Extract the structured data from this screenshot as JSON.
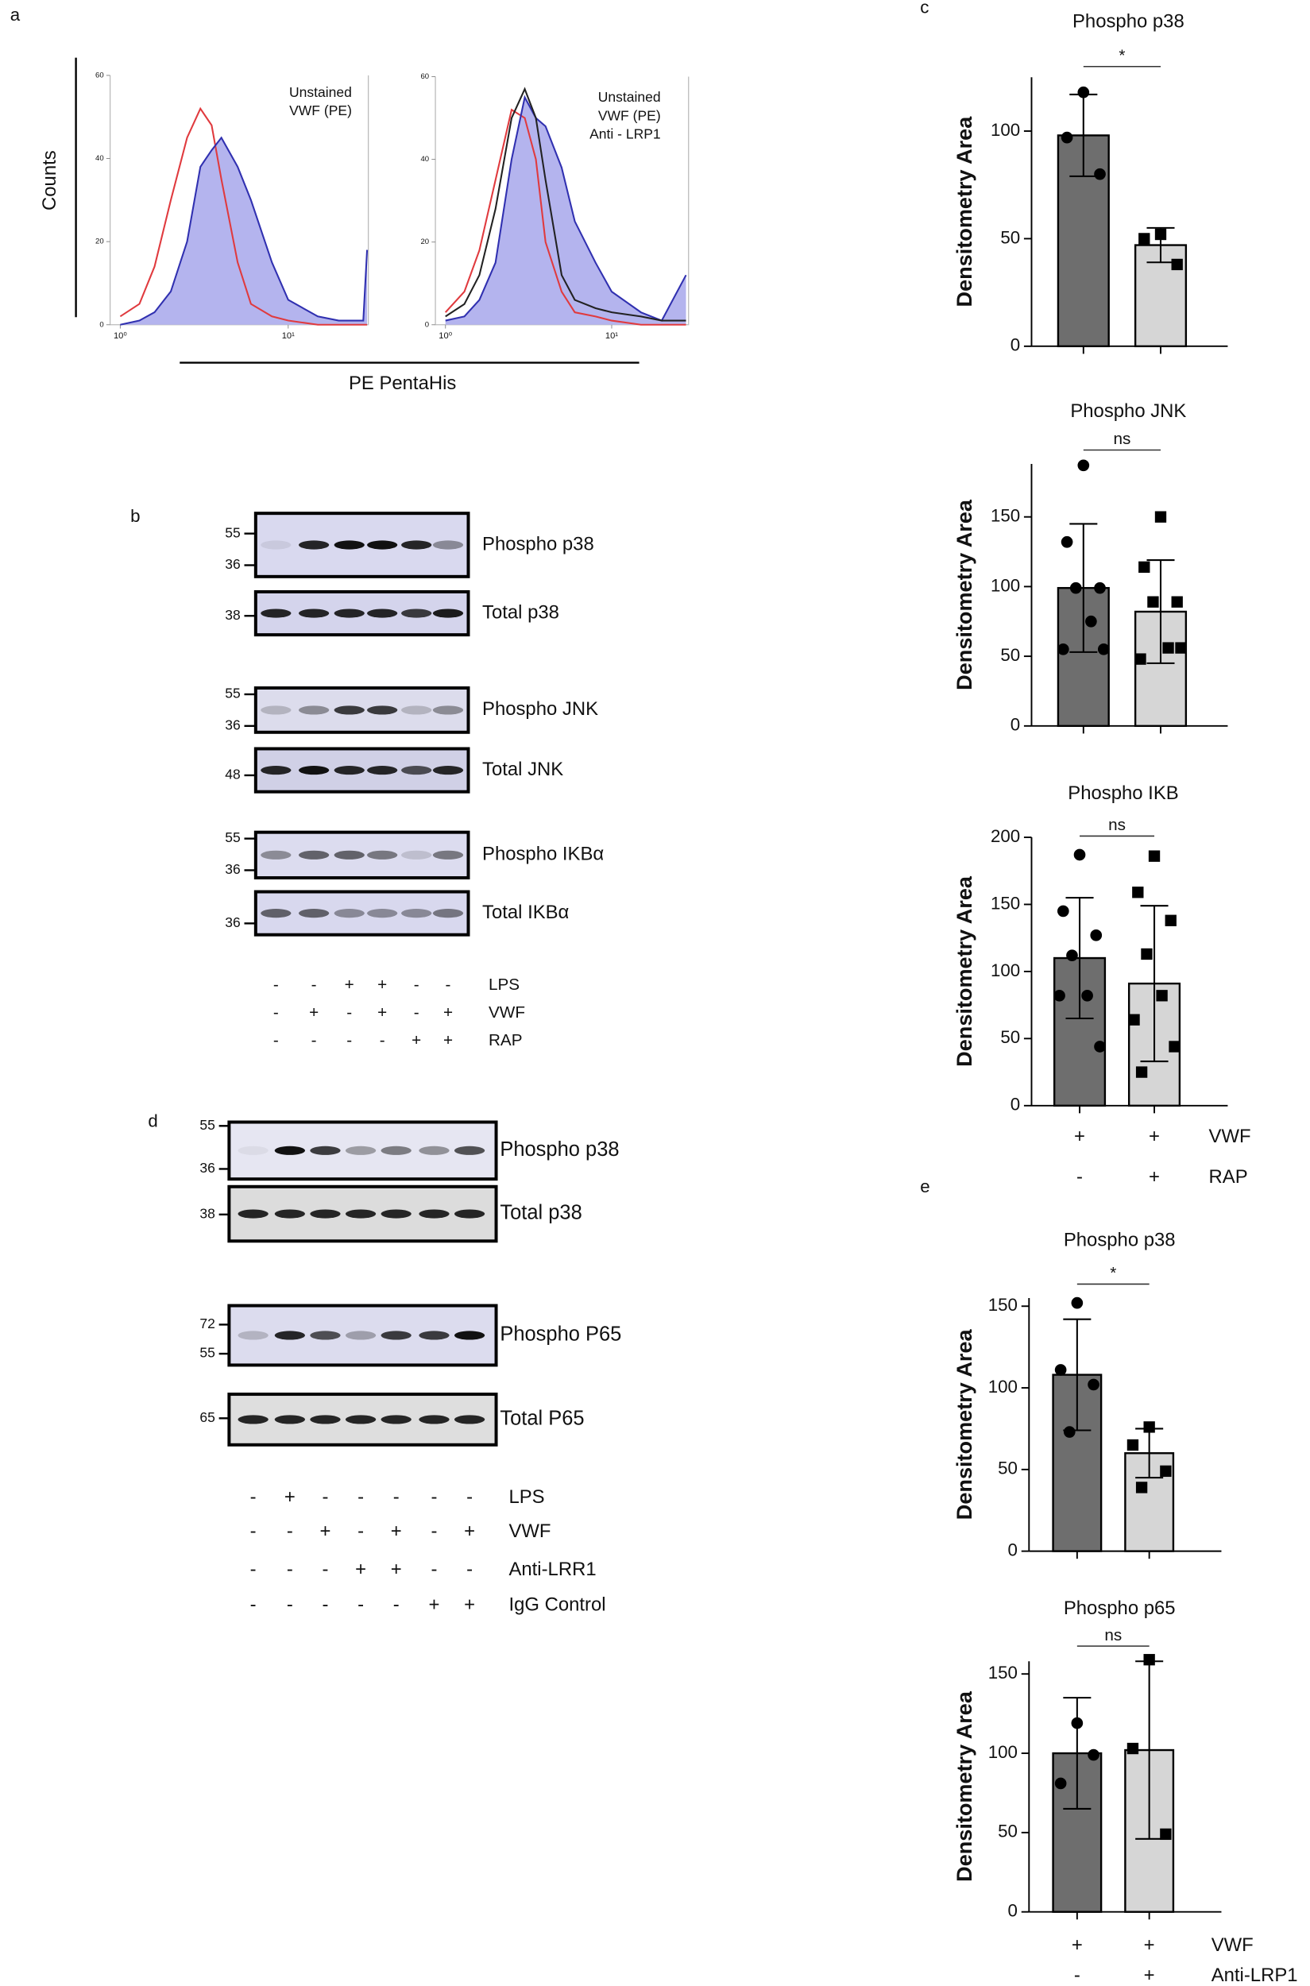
{
  "panel_labels": [
    "a",
    "b",
    "c",
    "d",
    "e"
  ],
  "histogram_axes": {
    "y_label": "Counts",
    "x_label": "PE PentaHis"
  },
  "chart_data": [
    {
      "type": "line",
      "xscale": "log",
      "xlim": [
        0.87,
        30
      ],
      "ylim": [
        0,
        60
      ],
      "yticks": [
        0,
        20,
        40,
        60
      ],
      "xticks": [
        {
          "value": 1,
          "label": "10⁰"
        },
        {
          "value": 10,
          "label": "10¹"
        }
      ],
      "x": [
        1,
        1.3,
        1.6,
        2,
        2.5,
        3,
        3.5,
        4,
        5,
        6,
        8,
        10,
        15,
        20,
        28,
        29.5
      ],
      "series": [
        {
          "name": "Unstained",
          "color": "#e03a3e",
          "values": [
            2,
            5,
            14,
            30,
            45,
            52,
            48,
            35,
            15,
            5,
            2,
            1,
            0,
            0,
            0,
            0
          ]
        },
        {
          "name": "VWF (PE)",
          "color": "#3030b0",
          "fill": "#b4b4ee",
          "values": [
            0,
            1,
            3,
            8,
            20,
            38,
            42,
            45,
            38,
            30,
            15,
            6,
            2,
            1,
            1,
            18
          ]
        }
      ]
    },
    {
      "type": "line",
      "xscale": "log",
      "xlim": [
        0.87,
        29
      ],
      "ylim": [
        0,
        60
      ],
      "yticks": [
        0,
        20,
        40,
        60
      ],
      "xticks": [
        {
          "value": 1,
          "label": "10⁰"
        },
        {
          "value": 10,
          "label": "10¹"
        }
      ],
      "x": [
        1,
        1.3,
        1.6,
        2,
        2.5,
        3,
        3.5,
        4,
        5,
        6,
        8,
        10,
        15,
        20,
        28
      ],
      "series": [
        {
          "name": "Unstained",
          "color": "#e03a3e",
          "values": [
            3,
            8,
            18,
            35,
            52,
            50,
            40,
            20,
            8,
            3,
            2,
            1,
            0,
            0,
            0
          ]
        },
        {
          "name": "VWF (PE)",
          "color": "#3030b0",
          "fill": "#b4b4ee",
          "values": [
            1,
            2,
            6,
            15,
            40,
            55,
            50,
            48,
            38,
            25,
            15,
            8,
            3,
            1,
            12
          ]
        },
        {
          "name": "Anti - LRP1",
          "color": "#222222",
          "values": [
            2,
            5,
            12,
            28,
            50,
            57,
            50,
            35,
            12,
            6,
            4,
            3,
            2,
            1,
            1
          ]
        }
      ]
    },
    {
      "type": "bar",
      "title": "Phospho p38",
      "y_label": "Densitometry Area",
      "ylim": [
        0,
        125
      ],
      "yticks": [
        0,
        50,
        100
      ],
      "values": [
        98,
        47
      ],
      "errors": [
        19,
        8
      ],
      "colors": [
        "#6e6e6e",
        "#d6d6d6"
      ],
      "point_shapes": [
        "circle",
        "square"
      ],
      "points": [
        [
          118,
          97,
          80
        ],
        [
          52,
          50,
          38
        ]
      ],
      "significance": "*"
    },
    {
      "type": "bar",
      "title": "Phospho JNK",
      "y_label": "Densitometry Area",
      "ylim": [
        0,
        188
      ],
      "yticks": [
        0,
        50,
        100,
        150
      ],
      "values": [
        99,
        82
      ],
      "errors": [
        46,
        37
      ],
      "colors": [
        "#6e6e6e",
        "#d6d6d6"
      ],
      "point_shapes": [
        "circle",
        "square"
      ],
      "points": [
        [
          187,
          132,
          99,
          99,
          75,
          55,
          55
        ],
        [
          150,
          114,
          89,
          89,
          56,
          48,
          56
        ]
      ],
      "significance": "ns"
    },
    {
      "type": "bar",
      "title": "Phospho IKB",
      "y_label": "Densitometry Area",
      "ylim": [
        0,
        200
      ],
      "yticks": [
        0,
        50,
        100,
        150,
        200
      ],
      "values": [
        110,
        91
      ],
      "errors": [
        45,
        58
      ],
      "colors": [
        "#6e6e6e",
        "#d6d6d6"
      ],
      "point_shapes": [
        "circle",
        "square"
      ],
      "points": [
        [
          187,
          145,
          127,
          112,
          82,
          82,
          44
        ],
        [
          186,
          159,
          138,
          113,
          82,
          64,
          44,
          25
        ]
      ],
      "significance": "ns",
      "conditions": [
        {
          "label": "VWF",
          "signs": [
            "+",
            "+"
          ]
        },
        {
          "label": "RAP",
          "signs": [
            "-",
            "+"
          ]
        }
      ]
    },
    {
      "type": "bar",
      "title": "Phospho p38",
      "y_label": "Densitometry Area",
      "ylim": [
        0,
        155
      ],
      "yticks": [
        0,
        50,
        100,
        150
      ],
      "values": [
        108,
        60
      ],
      "errors": [
        34,
        15
      ],
      "colors": [
        "#6e6e6e",
        "#d6d6d6"
      ],
      "point_shapes": [
        "circle",
        "square"
      ],
      "points": [
        [
          152,
          111,
          102,
          73
        ],
        [
          76,
          65,
          49,
          39
        ]
      ],
      "significance": "*"
    },
    {
      "type": "bar",
      "title": "Phospho p65",
      "y_label": "Densitometry Area",
      "ylim": [
        0,
        158
      ],
      "yticks": [
        0,
        50,
        100,
        150
      ],
      "values": [
        100,
        102
      ],
      "errors": [
        35,
        56
      ],
      "colors": [
        "#6e6e6e",
        "#d6d6d6"
      ],
      "point_shapes": [
        "circle",
        "square"
      ],
      "points": [
        [
          119,
          81,
          99
        ],
        [
          159,
          103,
          49
        ]
      ],
      "significance": "ns",
      "conditions": [
        {
          "label": "VWF",
          "signs": [
            "+",
            "+"
          ]
        },
        {
          "label": "Anti-LRP1",
          "signs": [
            "-",
            "+"
          ]
        }
      ]
    }
  ],
  "blot_panels": [
    {
      "strips": [
        {
          "markers": [
            55,
            36
          ],
          "label": "Phospho p38"
        },
        {
          "markers": [
            38
          ],
          "label": "Total p38"
        },
        {
          "markers": [
            55,
            36
          ],
          "label": "Phospho JNK"
        },
        {
          "markers": [
            48
          ],
          "label": "Total JNK"
        },
        {
          "markers": [
            55,
            36
          ],
          "label": "Phospho IKBα"
        },
        {
          "markers": [
            36
          ],
          "label": "Total IKBα"
        }
      ],
      "conditions": [
        {
          "label": "LPS",
          "signs": [
            "-",
            "-",
            "+",
            "+",
            "-",
            "-"
          ]
        },
        {
          "label": "VWF",
          "signs": [
            "-",
            "+",
            "-",
            "+",
            "-",
            "+"
          ]
        },
        {
          "label": "RAP",
          "signs": [
            "-",
            "-",
            "-",
            "-",
            "+",
            "+"
          ]
        }
      ]
    },
    {
      "strips": [
        {
          "markers": [
            55,
            36
          ],
          "label": "Phospho p38"
        },
        {
          "markers": [
            38
          ],
          "label": "Total p38"
        },
        {
          "markers": [
            72,
            55
          ],
          "label": "Phospho P65"
        },
        {
          "markers": [
            65
          ],
          "label": "Total P65"
        }
      ],
      "conditions": [
        {
          "label": "LPS",
          "signs": [
            "-",
            "+",
            "-",
            "-",
            "-",
            "-",
            "-"
          ]
        },
        {
          "label": "VWF",
          "signs": [
            "-",
            "-",
            "+",
            "-",
            "+",
            "-",
            "+"
          ]
        },
        {
          "label": "Anti-LRR1",
          "signs": [
            "-",
            "-",
            "-",
            "+",
            "+",
            "-",
            "-"
          ]
        },
        {
          "label": "IgG Control",
          "signs": [
            "-",
            "-",
            "-",
            "-",
            "-",
            "+",
            "+"
          ]
        }
      ]
    }
  ]
}
